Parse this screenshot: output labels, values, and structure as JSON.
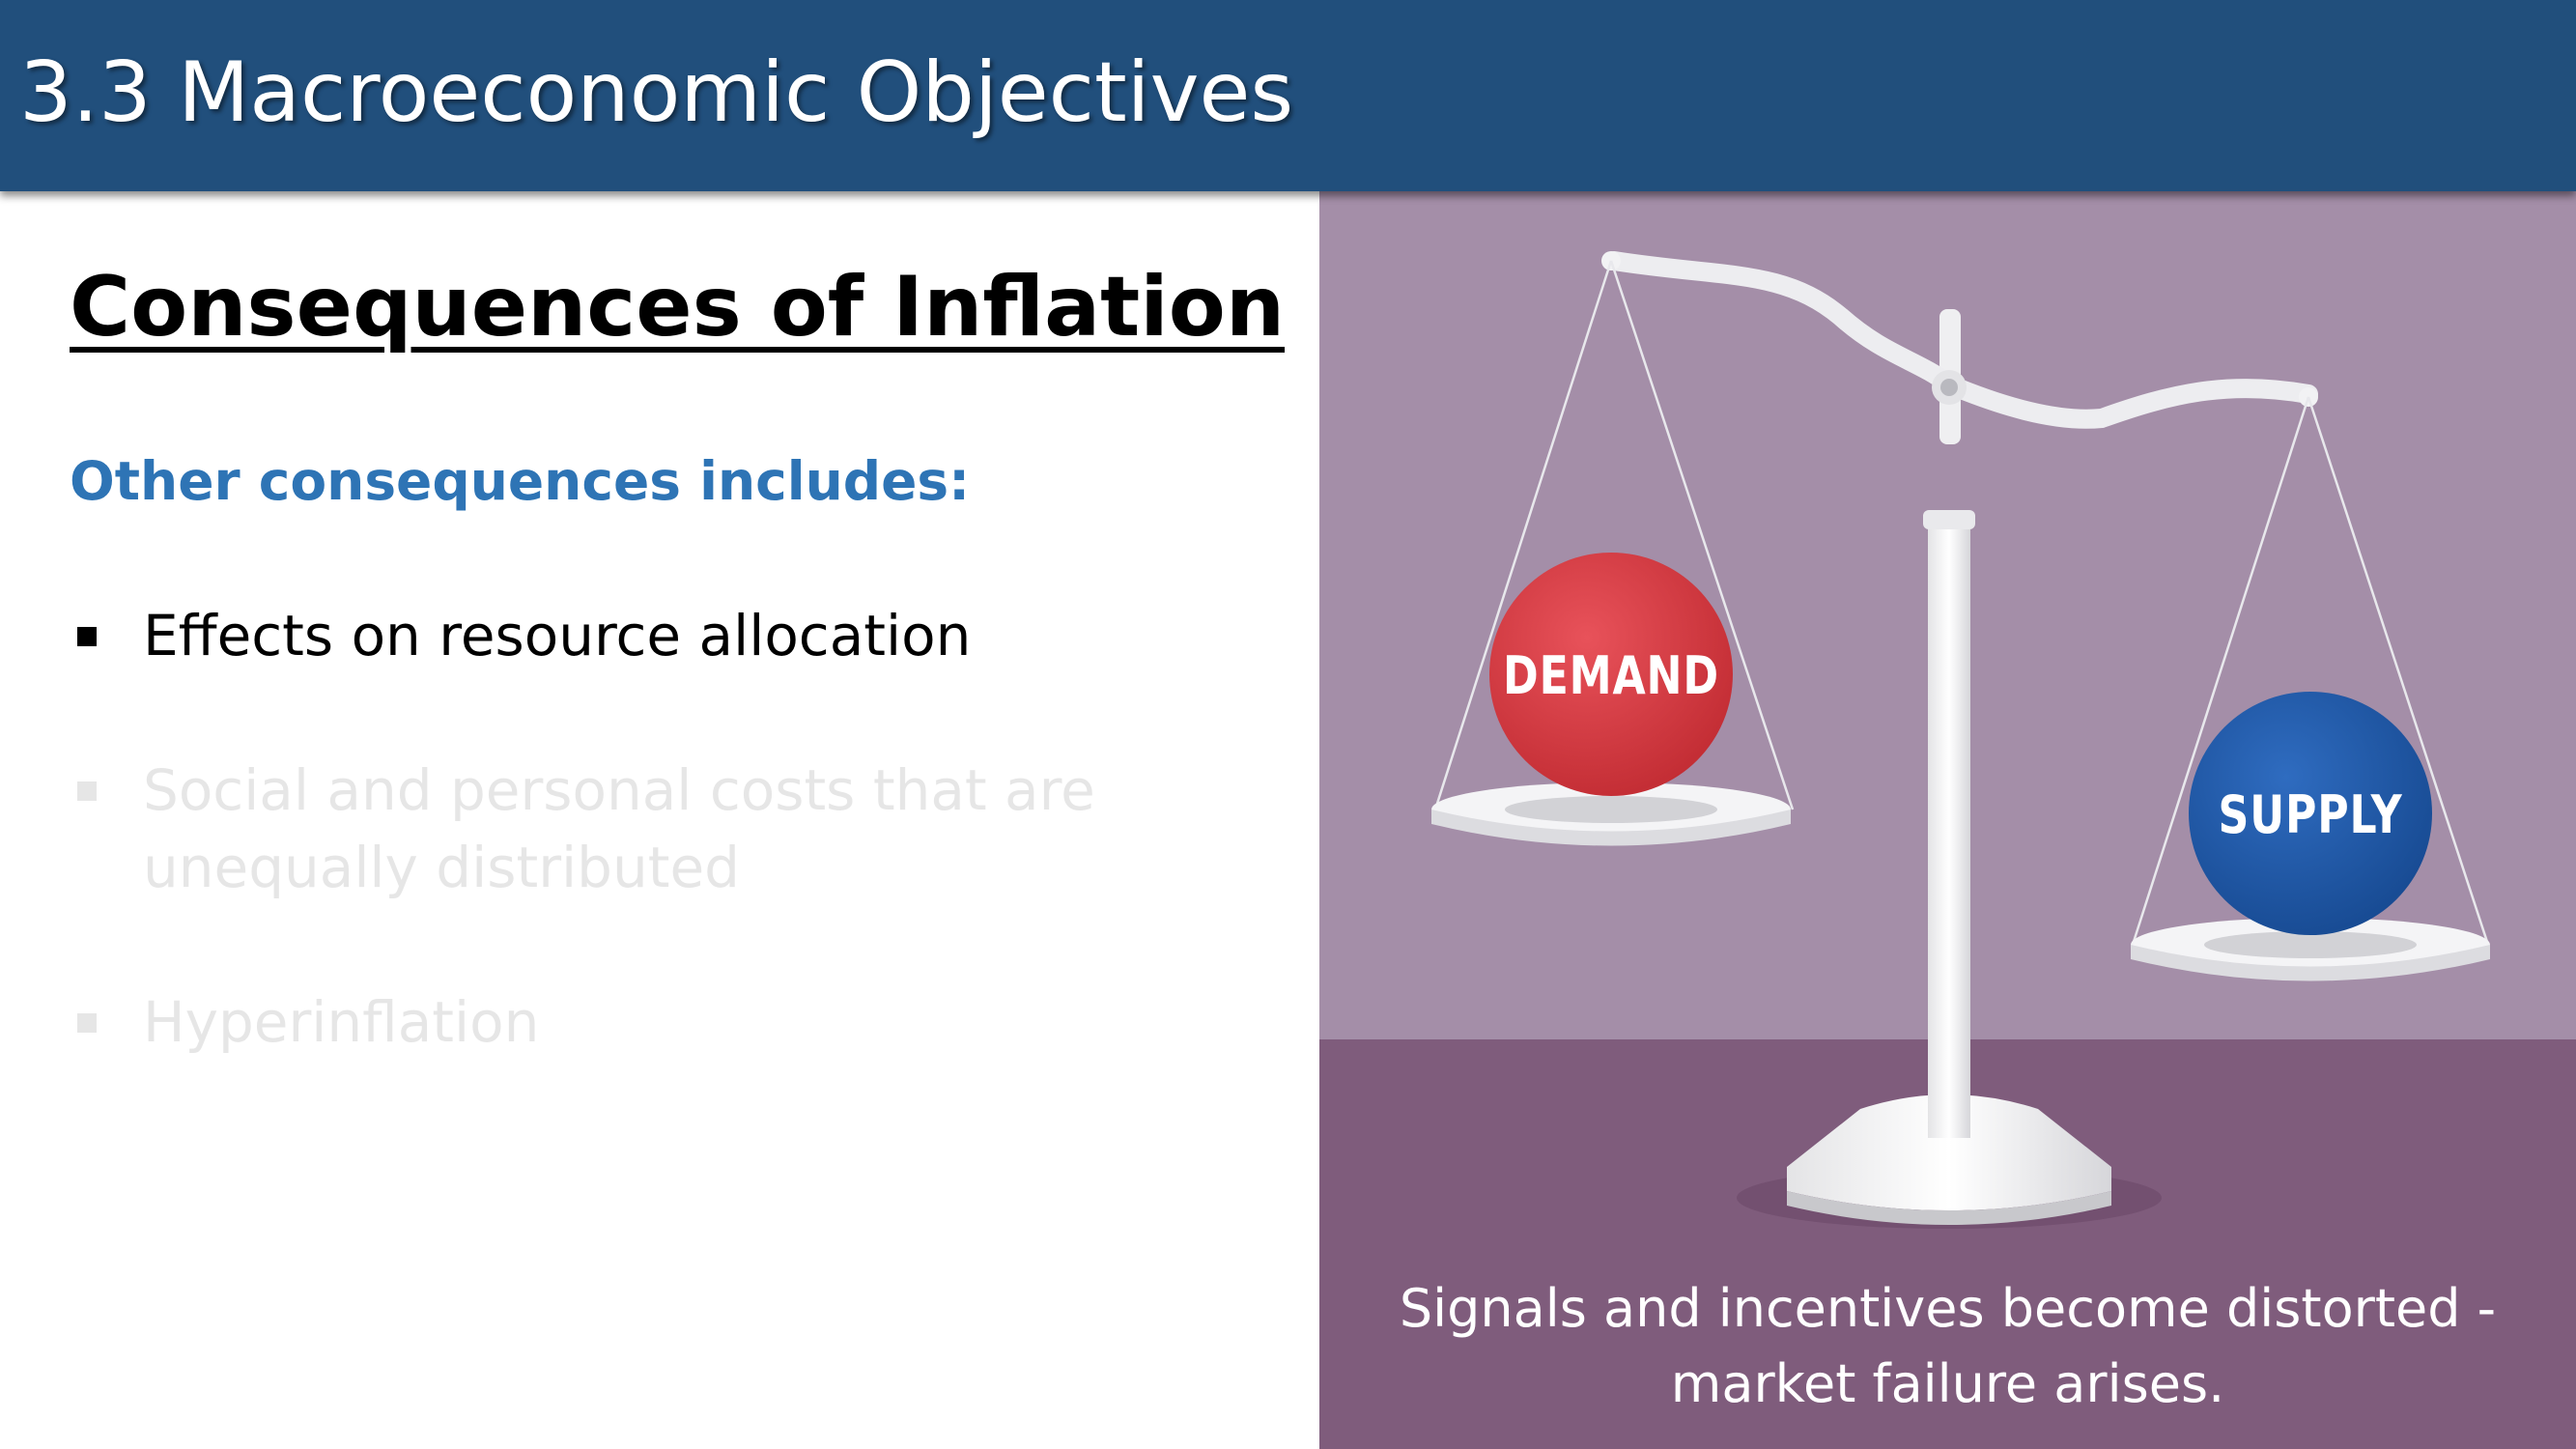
{
  "header": {
    "title": "3.3 Macroeconomic Objectives",
    "background_color": "#214f7c"
  },
  "content": {
    "title": "Consequences of Inflation",
    "subheading": "Other consequences includes:",
    "subheading_color": "#2e74b5",
    "bullets": [
      {
        "text": "Effects on resource allocation",
        "state": "active"
      },
      {
        "text": "Social and personal costs that are unequally distributed",
        "state": "dimmed"
      },
      {
        "text": "Hyperinflation",
        "state": "dimmed"
      }
    ]
  },
  "illustration": {
    "left_pan_label": "DEMAND",
    "right_pan_label": "SUPPLY",
    "left_ball_color": "#d83a40",
    "right_ball_color": "#1f57a6",
    "wall_color": "#a48ea8",
    "floor_color": "#7f5c7c",
    "caption": "Signals and incentives become distorted - market failure arises."
  }
}
